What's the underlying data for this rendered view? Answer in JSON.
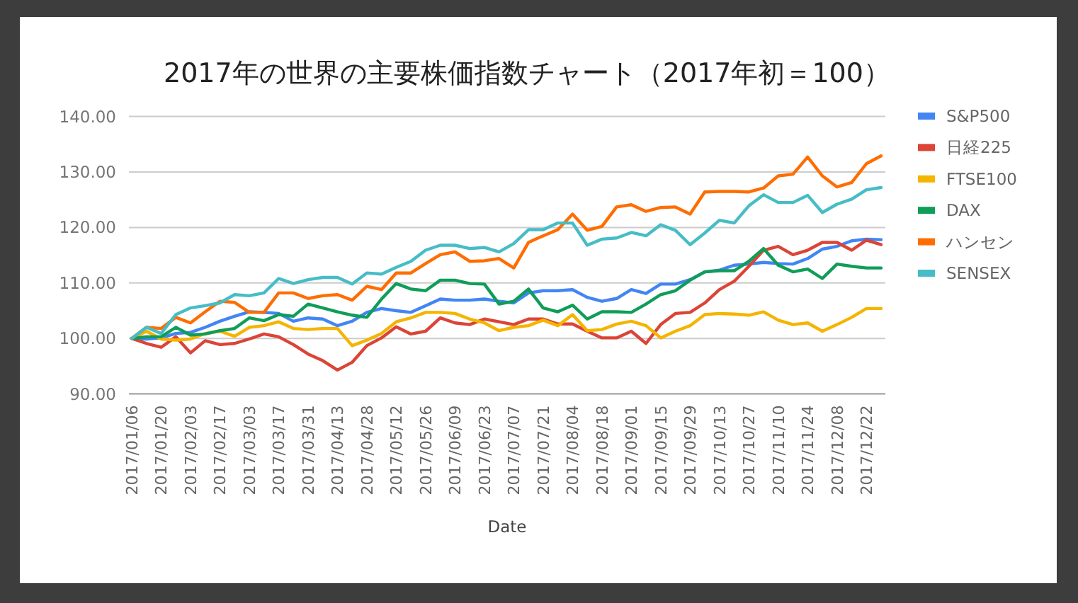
{
  "chart_data": {
    "type": "line",
    "title": "2017年の世界の主要株価指数チャート（2017年初＝100）",
    "xlabel": "Date",
    "categories": [
      "2017/01/06",
      null,
      "2017/01/20",
      null,
      "2017/02/03",
      null,
      "2017/02/17",
      null,
      "2017/03/03",
      null,
      "2017/03/17",
      null,
      "2017/03/31",
      null,
      "2017/04/13",
      null,
      "2017/04/28",
      null,
      "2017/05/12",
      null,
      "2017/05/26",
      null,
      "2017/06/09",
      null,
      "2017/06/23",
      null,
      "2017/07/07",
      null,
      "2017/07/21",
      null,
      "2017/08/04",
      null,
      "2017/08/18",
      null,
      "2017/09/01",
      null,
      "2017/09/15",
      null,
      "2017/09/29",
      null,
      "2017/10/13",
      null,
      "2017/10/27",
      null,
      "2017/11/10",
      null,
      "2017/11/24",
      null,
      "2017/12/08",
      null,
      "2017/12/22",
      null
    ],
    "ylim": [
      90,
      140
    ],
    "yticks": [
      {
        "value": 90,
        "label": "90.00"
      },
      {
        "value": 100,
        "label": "100.00"
      },
      {
        "value": 110,
        "label": "110.00"
      },
      {
        "value": 120,
        "label": "120.00"
      },
      {
        "value": 130,
        "label": "130.00"
      },
      {
        "value": 140,
        "label": "140.00"
      }
    ],
    "grid": "y",
    "legend": "right",
    "series": [
      {
        "name": "S&P500",
        "color": "#4285f4",
        "values": [
          100,
          99.9,
          100.1,
          100.9,
          101.1,
          102.0,
          103.1,
          104.0,
          104.8,
          104.7,
          104.5,
          103.1,
          103.7,
          103.5,
          102.3,
          103.1,
          104.7,
          105.4,
          105.0,
          104.7,
          105.9,
          107.1,
          106.9,
          106.9,
          107.1,
          106.7,
          106.4,
          108.2,
          108.6,
          108.6,
          108.8,
          107.4,
          106.7,
          107.2,
          108.8,
          108.1,
          109.8,
          109.8,
          110.6,
          112.0,
          112.3,
          113.2,
          113.4,
          113.7,
          113.5,
          113.4,
          114.4,
          116.1,
          116.6,
          117.6,
          117.9,
          117.8
        ]
      },
      {
        "name": "日経225",
        "color": "#db4437",
        "values": [
          100,
          99.1,
          98.4,
          100.3,
          97.4,
          99.6,
          98.9,
          99.1,
          99.9,
          100.8,
          100.3,
          98.9,
          97.2,
          96.0,
          94.3,
          95.7,
          98.7,
          100.1,
          102.1,
          100.8,
          101.3,
          103.7,
          102.8,
          102.5,
          103.5,
          103.0,
          102.5,
          103.5,
          103.5,
          102.6,
          102.6,
          101.3,
          100.1,
          100.1,
          101.3,
          99.1,
          102.5,
          104.5,
          104.7,
          106.4,
          108.8,
          110.3,
          113.0,
          115.9,
          116.6,
          115.1,
          115.9,
          117.3,
          117.3,
          115.9,
          117.7,
          116.9
        ]
      },
      {
        "name": "FTSE100",
        "color": "#f4b400",
        "values": [
          100,
          101.3,
          99.9,
          99.7,
          99.9,
          100.9,
          101.3,
          100.4,
          102.0,
          102.3,
          103.0,
          101.8,
          101.6,
          101.8,
          101.8,
          98.7,
          99.7,
          100.9,
          103.0,
          103.7,
          104.7,
          104.7,
          104.5,
          103.5,
          102.8,
          101.4,
          102.0,
          102.3,
          103.3,
          102.3,
          104.3,
          101.4,
          101.6,
          102.6,
          103.1,
          102.3,
          100.1,
          101.3,
          102.3,
          104.3,
          104.5,
          104.4,
          104.2,
          104.8,
          103.3,
          102.5,
          102.8,
          101.3,
          102.5,
          103.8,
          105.4,
          105.4
        ]
      },
      {
        "name": "DAX",
        "color": "#0f9d58",
        "values": [
          100,
          100.3,
          100.3,
          102.0,
          100.6,
          100.8,
          101.4,
          101.8,
          103.7,
          103.2,
          104.3,
          104.0,
          106.2,
          105.5,
          104.8,
          104.2,
          103.8,
          107.1,
          109.9,
          108.9,
          108.6,
          110.5,
          110.5,
          109.9,
          109.8,
          106.2,
          106.7,
          108.9,
          105.5,
          104.8,
          106.0,
          103.5,
          104.8,
          104.8,
          104.7,
          106.2,
          107.9,
          108.6,
          110.5,
          112.0,
          112.2,
          112.2,
          113.9,
          116.2,
          113.2,
          112.0,
          112.5,
          110.8,
          113.4,
          113.0,
          112.7,
          112.7
        ]
      },
      {
        "name": "ハンセン",
        "color": "#ff6d00",
        "values": [
          100,
          102.0,
          101.8,
          103.8,
          102.8,
          104.8,
          106.7,
          106.5,
          104.7,
          104.7,
          108.2,
          108.2,
          107.2,
          107.7,
          107.9,
          106.9,
          109.4,
          108.8,
          111.8,
          111.8,
          113.5,
          115.1,
          115.6,
          113.9,
          114.0,
          114.4,
          112.7,
          117.3,
          118.5,
          119.6,
          122.4,
          119.5,
          120.2,
          123.7,
          124.1,
          122.9,
          123.6,
          123.7,
          122.4,
          126.4,
          126.5,
          126.5,
          126.4,
          127.1,
          129.3,
          129.6,
          132.7,
          129.3,
          127.3,
          128.1,
          131.5,
          132.9
        ]
      },
      {
        "name": "SENSEX",
        "color": "#46bdc6",
        "values": [
          100,
          102.0,
          100.9,
          104.3,
          105.5,
          105.9,
          106.4,
          107.9,
          107.7,
          108.2,
          110.8,
          109.9,
          110.6,
          111.0,
          111.0,
          109.8,
          111.8,
          111.6,
          112.8,
          113.9,
          115.9,
          116.8,
          116.8,
          116.2,
          116.4,
          115.6,
          117.1,
          119.6,
          119.6,
          120.8,
          120.8,
          116.8,
          117.9,
          118.1,
          119.1,
          118.5,
          120.5,
          119.5,
          116.9,
          119.0,
          121.3,
          120.8,
          123.9,
          125.9,
          124.5,
          124.5,
          125.8,
          122.7,
          124.2,
          125.1,
          126.8,
          127.2
        ]
      }
    ]
  }
}
